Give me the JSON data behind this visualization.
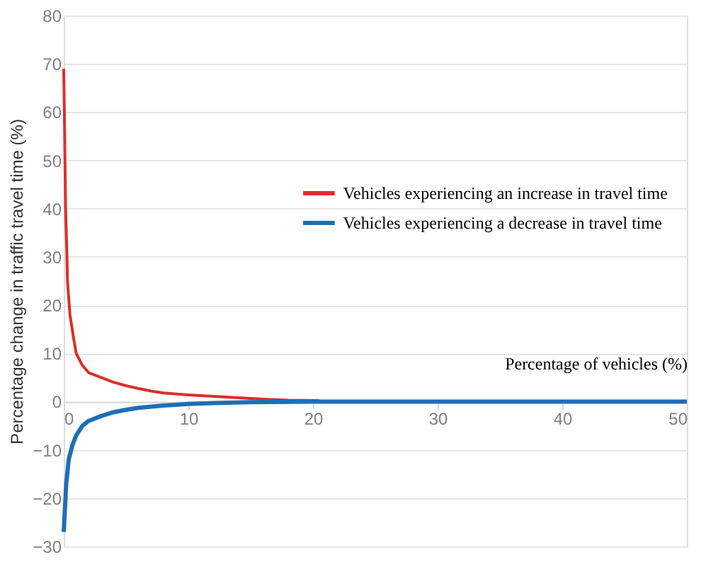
{
  "chart_data": {
    "type": "line",
    "xlabel": "Percentage of vehicles (%)",
    "ylabel": "Percentage change in traffic travel time (%)",
    "series": [
      {
        "name": "Vehicles  experiencing  an increase in travel time",
        "color": "#d9302c",
        "x": [
          0,
          0.05,
          0.1,
          0.15,
          0.25,
          0.3,
          0.5,
          0.8,
          1,
          1.5,
          2,
          3,
          4,
          5,
          6,
          7,
          8,
          10,
          12,
          14,
          16,
          18,
          20.5
        ],
        "values": [
          69,
          60,
          50,
          40,
          31,
          25,
          18,
          13,
          10,
          7.5,
          6,
          5,
          4,
          3.3,
          2.7,
          2.2,
          1.8,
          1.4,
          1.1,
          0.8,
          0.5,
          0.3,
          0.2
        ]
      },
      {
        "name": "Vehicles experiencing  a decrease in travel time",
        "color": "#1f6fb4",
        "x": [
          0,
          0.1,
          0.2,
          0.4,
          0.7,
          1,
          1.5,
          2,
          3,
          4,
          5,
          6,
          8,
          10,
          12,
          15,
          20,
          50
        ],
        "values": [
          -27,
          -22,
          -17,
          -12,
          -9,
          -7,
          -5,
          -4,
          -3,
          -2.2,
          -1.7,
          -1.3,
          -0.8,
          -0.5,
          -0.3,
          -0.1,
          0,
          0
        ]
      }
    ],
    "xlim": [
      0,
      50
    ],
    "xticks": [
      0,
      10,
      20,
      30,
      40,
      50
    ],
    "ylim": [
      -30,
      80
    ],
    "yticks": [
      -30,
      -20,
      -10,
      0,
      10,
      20,
      30,
      40,
      50,
      60,
      70,
      80
    ],
    "grid": "y",
    "legend": "right",
    "marker": "none",
    "line_style": "solid"
  }
}
